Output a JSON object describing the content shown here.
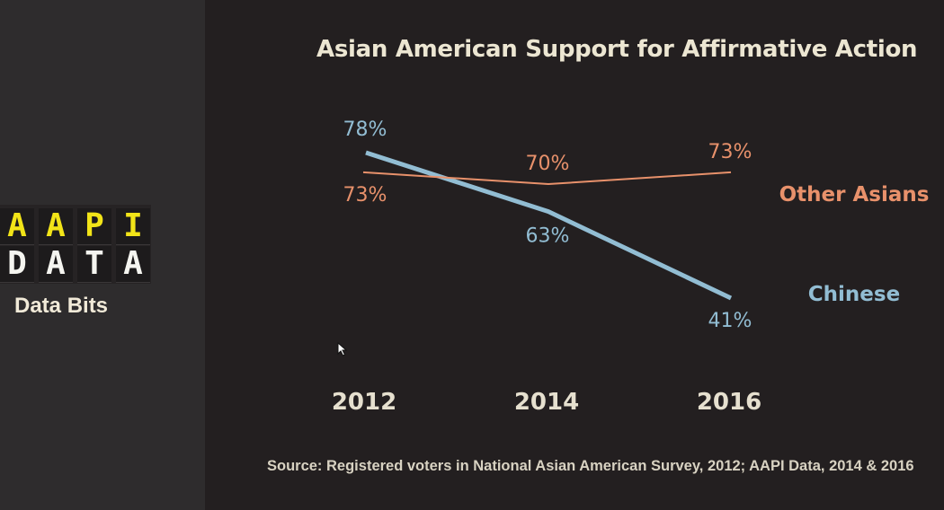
{
  "logo": {
    "row1": [
      "A",
      "A",
      "P",
      "I"
    ],
    "row2": [
      "D",
      "A",
      "T",
      "A"
    ],
    "tagline": "Data Bits"
  },
  "source": "Source: Registered voters in National Asian American Survey, 2012; AAPI Data, 2014 & 2016",
  "chart_data": {
    "type": "line",
    "title": "Asian American Support for Affirmative Action",
    "x": [
      "2012",
      "2014",
      "2016"
    ],
    "xlabel": "",
    "ylabel": "",
    "ylim": [
      30,
      85
    ],
    "grid": false,
    "series": [
      {
        "name": "Chinese",
        "values": [
          78,
          63,
          41
        ],
        "labels": [
          "78%",
          "63%",
          "41%"
        ],
        "color": "#92bdd3"
      },
      {
        "name": "Other Asians",
        "values": [
          73,
          70,
          73
        ],
        "labels": [
          "73%",
          "70%",
          "73%"
        ],
        "color": "#e8916b"
      }
    ]
  }
}
